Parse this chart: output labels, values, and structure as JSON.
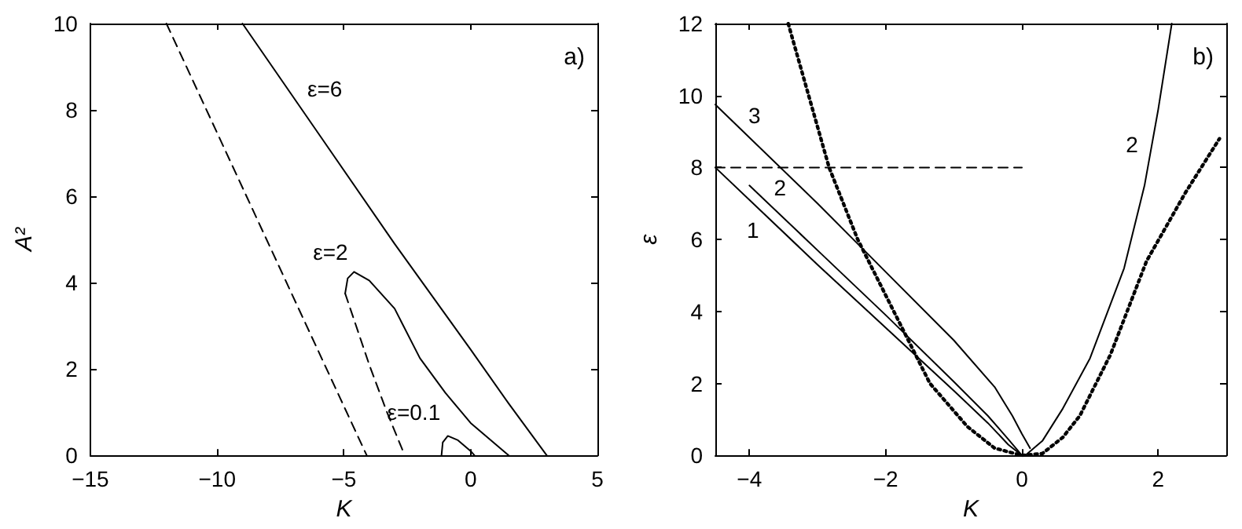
{
  "chart_data": [
    {
      "type": "line",
      "xlabel": "K",
      "ylabel": "A²",
      "xlim": [
        -15,
        5
      ],
      "ylim": [
        0,
        10
      ],
      "xticks": [
        -15,
        -10,
        -5,
        0,
        5
      ],
      "yticks": [
        0,
        2,
        4,
        6,
        8,
        10
      ],
      "series": [
        {
          "name": "ε=6",
          "color": "#000000",
          "line_style": "solid",
          "x": [
            -9,
            -6,
            -3,
            0,
            1.5,
            3
          ],
          "values": [
            10,
            7.45,
            4.9,
            2.45,
            1.2,
            0
          ]
        },
        {
          "name": "ε=2",
          "color": "#000000",
          "line_style": "solid",
          "x": [
            -4.95,
            -4.85,
            -4.6,
            -4,
            -3,
            -2,
            -1,
            0,
            1,
            1.5
          ],
          "values": [
            3.75,
            4.1,
            4.25,
            4.05,
            3.4,
            2.25,
            1.45,
            0.75,
            0.25,
            0
          ]
        },
        {
          "color": "#000000",
          "line_style": "dashed",
          "x": [
            -4.95,
            -4,
            -3.3,
            -2.6
          ],
          "values": [
            3.75,
            2.1,
            1.0,
            0
          ]
        },
        {
          "name": "ε=0.1",
          "color": "#000000",
          "line_style": "solid",
          "x": [
            -1.15,
            -1.1,
            -0.9,
            -0.5,
            0,
            0.15
          ],
          "values": [
            0,
            0.3,
            0.45,
            0.35,
            0.1,
            0
          ]
        },
        {
          "color": "#000000",
          "line_style": "dashed",
          "x": [
            -12,
            -4.1
          ],
          "values": [
            10,
            0
          ]
        }
      ],
      "annotations": [
        "a)"
      ]
    },
    {
      "type": "line",
      "xlabel": "K",
      "ylabel": "ε",
      "xlim": [
        -4.5,
        3
      ],
      "ylim": [
        0,
        12
      ],
      "xticks": [
        -4,
        -2,
        0,
        2
      ],
      "yticks": [
        0,
        2,
        4,
        6,
        8,
        10,
        12
      ],
      "series": [
        {
          "name": "1",
          "color": "#000000",
          "line_style": "solid",
          "x": [
            -4.5,
            -3,
            -2,
            -1,
            -0.5,
            -0.2,
            0
          ],
          "values": [
            8,
            5.3,
            3.55,
            1.8,
            0.9,
            0.3,
            0
          ]
        },
        {
          "name": "2",
          "color": "#000000",
          "line_style": "solid",
          "x": [
            -4,
            -3,
            -2,
            -1,
            -0.5,
            -0.2,
            0
          ],
          "values": [
            7.5,
            5.7,
            3.9,
            2.05,
            1.1,
            0.45,
            0
          ]
        },
        {
          "name": "2",
          "color": "#000000",
          "line_style": "solid",
          "x": [
            0.05,
            0.3,
            0.6,
            1,
            1.5,
            1.8,
            2,
            2.2
          ],
          "values": [
            0,
            0.4,
            1.3,
            2.7,
            5.2,
            7.5,
            9.6,
            12
          ]
        },
        {
          "name": "3",
          "color": "#000000",
          "line_style": "solid",
          "x": [
            -4.5,
            -3,
            -2,
            -1,
            -0.4,
            -0.14,
            0,
            0.12
          ],
          "values": [
            9.75,
            7,
            5.1,
            3.2,
            1.9,
            1.1,
            0.6,
            0.2
          ]
        },
        {
          "color": "#000000",
          "line_style": "dotted",
          "x": [
            -3.43,
            -2.83,
            -2.41,
            -1.88,
            -1.35,
            -0.8,
            -0.4,
            0,
            0.3,
            0.6,
            0.85,
            1.3,
            1.83,
            2.4,
            2.9
          ],
          "values": [
            12,
            8,
            6,
            4,
            2,
            0.8,
            0.2,
            0,
            0.05,
            0.5,
            1.1,
            2.8,
            5.4,
            7.3,
            8.8
          ]
        },
        {
          "color": "#000000",
          "line_style": "dashed",
          "x": [
            -4.5,
            0
          ],
          "values": [
            8,
            8
          ]
        }
      ],
      "annotations": [
        "b)"
      ]
    }
  ]
}
